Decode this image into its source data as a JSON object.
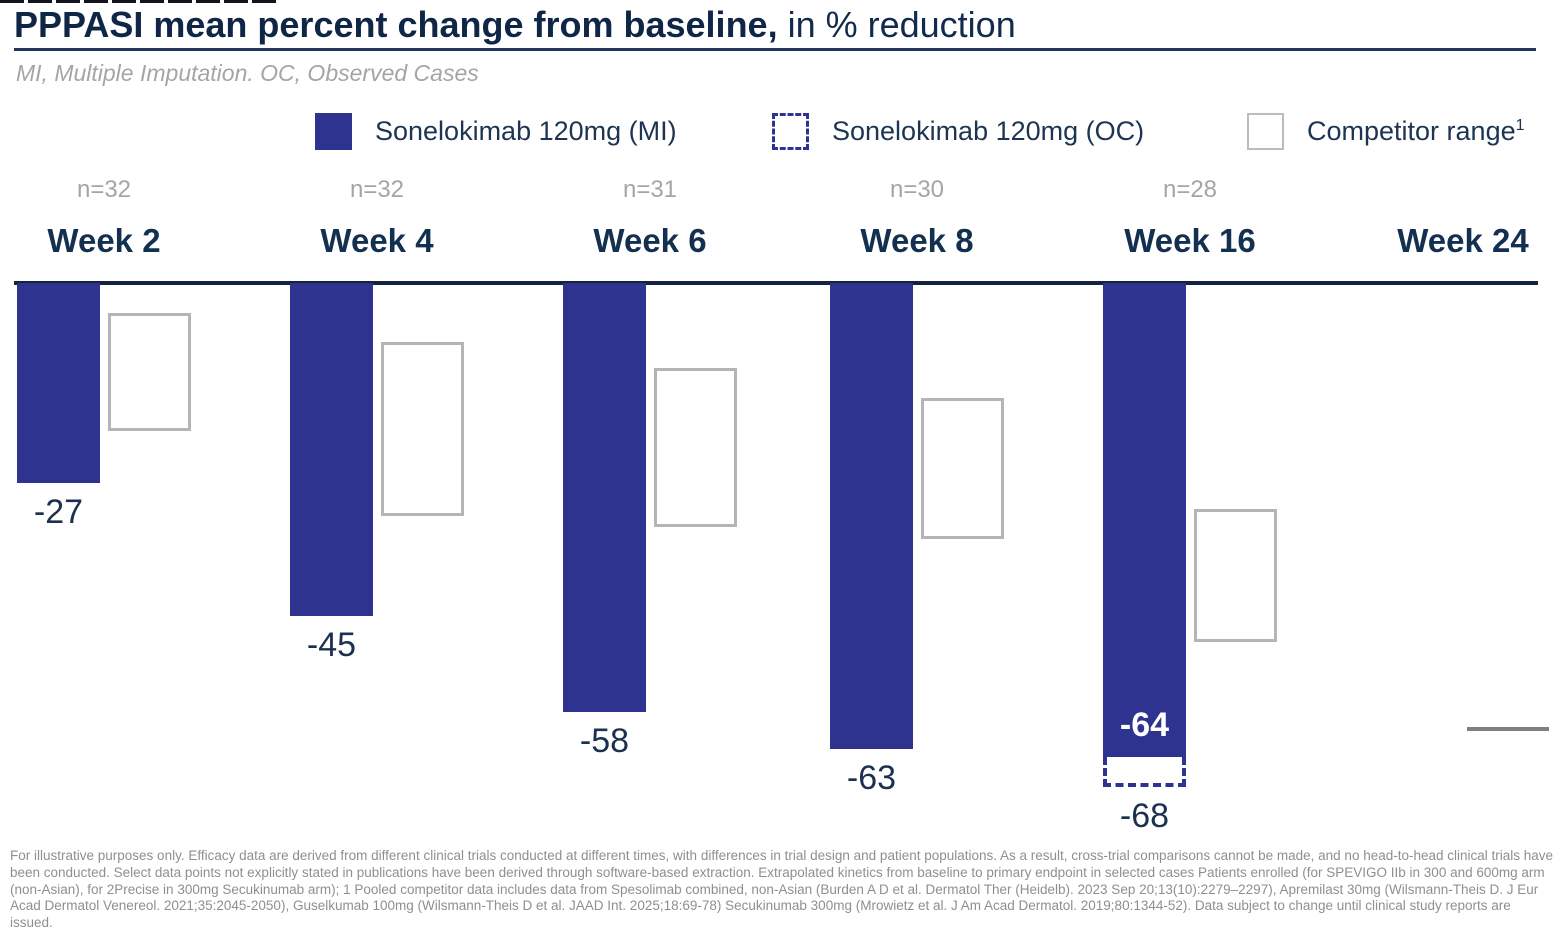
{
  "header": {
    "title_bold": "PPPASI mean percent change from baseline,",
    "title_rest": " in % reduction",
    "subtitle": "MI, Multiple Imputation. OC, Observed Cases"
  },
  "legend": {
    "items": [
      {
        "label": "Sonelokimab 120mg (MI)",
        "swatch": "solid-navy-square"
      },
      {
        "label": "Sonelokimab 120mg (OC)",
        "swatch": "dashed-navy-square"
      },
      {
        "label": "Competitor range",
        "superscript": "1",
        "swatch": "gray-outline-square"
      }
    ]
  },
  "colors": {
    "bar_navy": "#2e3390",
    "text_navy": "#143050",
    "title_navy": "#0f2647",
    "gray_text": "#a5a5a5",
    "footer_gray": "#8f8f8f",
    "competitor_box_border": "#b5b5b5",
    "competitor_point_line": "#808080",
    "baseline": "#16233c"
  },
  "chart_data": {
    "type": "bar",
    "title": "PPPASI mean percent change from baseline, in % reduction",
    "orientation": "vertical-downward",
    "categories": [
      "Week 2",
      "Week 4",
      "Week 6",
      "Week 8",
      "Week 16",
      "Week 24"
    ],
    "n_labels": [
      "n=32",
      "n=32",
      "n=31",
      "n=30",
      "n=28",
      null
    ],
    "series": [
      {
        "name": "Sonelokimab 120mg (MI)",
        "type": "bar",
        "values": [
          -27,
          -45,
          -58,
          -63,
          -64,
          null
        ],
        "label_inside": [
          false,
          false,
          false,
          false,
          true,
          false
        ],
        "color": "#2e3390"
      },
      {
        "name": "Sonelokimab 120mg (OC)",
        "type": "dashed-bar-extension",
        "values": [
          null,
          null,
          null,
          null,
          -68,
          null
        ]
      },
      {
        "name": "Competitor range",
        "type": "range-box",
        "ranges": [
          [
            -4,
            -20
          ],
          [
            -8,
            -31.5
          ],
          [
            -11.5,
            -33
          ],
          [
            -15.5,
            -34.5
          ],
          [
            -30.5,
            -48.5
          ],
          [
            -60,
            -60
          ]
        ]
      }
    ],
    "ylim": [
      0,
      -70
    ],
    "unit": "% change from baseline",
    "gridlines": false,
    "legend_position": "top"
  },
  "footer": {
    "text": "For illustrative purposes only. Efficacy data are derived from different clinical trials conducted at different times, with differences in trial design and patient populations. As a result, cross-trial comparisons cannot be made, and no head-to-head clinical trials have been conducted. Select data points not explicitly stated in publications have been derived through software-based extraction. Extrapolated kinetics from baseline to primary endpoint in selected cases Patients enrolled (for SPEVIGO IIb in 300 and 600mg arm (non-Asian), for 2Precise in 300mg Secukinumab arm); 1 Pooled competitor data includes data from Spesolimab combined, non-Asian (Burden A D et al. Dermatol Ther (Heidelb). 2023 Sep 20;13(10):2279–2297), Apremilast 30mg (Wilsmann-Theis D. J Eur Acad Dermatol Venereol. 2021;35:2045-2050), Guselkumab 100mg (Wilsmann-Theis D et al. JAAD Int. 2025;18:69-78) Secukinumab 300mg (Mrowietz et al. J Am Acad Dermatol. 2019;80:1344-52). Data subject to change until clinical study reports are issued."
  }
}
